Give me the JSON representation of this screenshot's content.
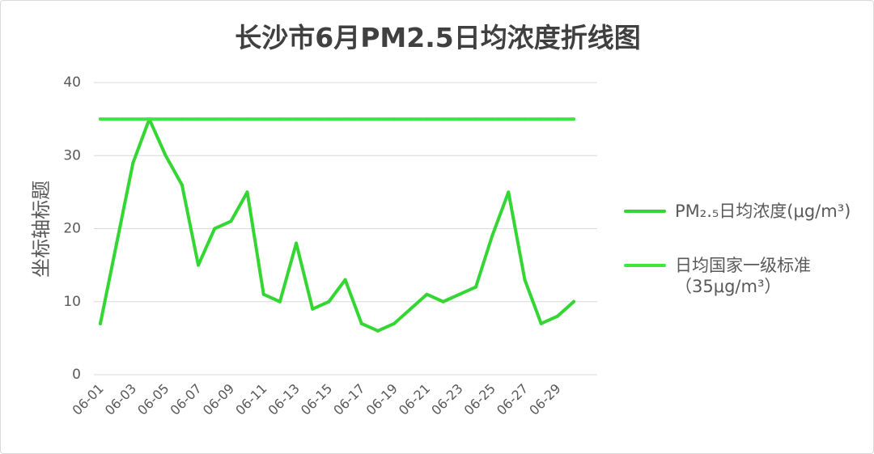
{
  "chart_data": {
    "type": "line",
    "title": "长沙市6月PM2.5日均浓度折线图",
    "ylabel": "坐标轴标题",
    "ylim": [
      0,
      40
    ],
    "yticks": [
      0,
      10,
      20,
      30,
      40
    ],
    "grid": true,
    "legend": "right",
    "xtick_interval": 2,
    "categories": [
      "06-01",
      "06-02",
      "06-03",
      "06-04",
      "06-05",
      "06-06",
      "06-07",
      "06-08",
      "06-09",
      "06-10",
      "06-11",
      "06-12",
      "06-13",
      "06-14",
      "06-15",
      "06-16",
      "06-17",
      "06-18",
      "06-19",
      "06-20",
      "06-21",
      "06-22",
      "06-23",
      "06-24",
      "06-25",
      "06-26",
      "06-27",
      "06-28",
      "06-29",
      "06-30"
    ],
    "series": [
      {
        "name": "PM₂.₅日均浓度(μg/m³)",
        "color": "#33d633",
        "values": [
          7,
          18,
          29,
          35,
          30,
          26,
          15,
          20,
          21,
          25,
          11,
          10,
          18,
          9,
          10,
          13,
          7,
          6,
          7,
          9,
          11,
          10,
          11,
          12,
          19,
          25,
          13,
          7,
          8,
          10
        ]
      },
      {
        "name": "日均国家一级标准\n（35μg/m³）",
        "color": "#3ee63e",
        "values": [
          35,
          35,
          35,
          35,
          35,
          35,
          35,
          35,
          35,
          35,
          35,
          35,
          35,
          35,
          35,
          35,
          35,
          35,
          35,
          35,
          35,
          35,
          35,
          35,
          35,
          35,
          35,
          35,
          35,
          35
        ]
      }
    ]
  }
}
